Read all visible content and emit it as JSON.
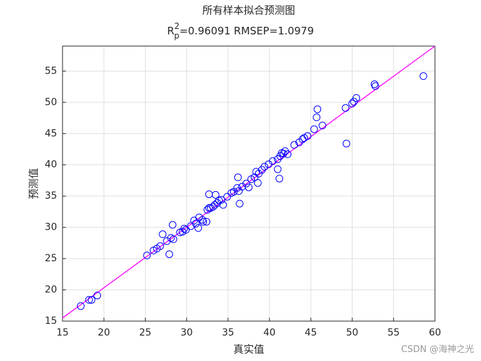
{
  "chart_data": {
    "type": "scatter",
    "title": "所有样本拟合预测图",
    "subtitle": {
      "base": "R",
      "sup": "2",
      "sub": "p",
      "rest": "=0.96091  RMSEP=1.0979"
    },
    "x_label": "真实值",
    "y_label": "预测值",
    "watermark": "CSDN @海神之光",
    "xlim": [
      15,
      60
    ],
    "ylim": [
      15,
      59
    ],
    "xticks": [
      15,
      20,
      25,
      30,
      35,
      40,
      45,
      50,
      55,
      60
    ],
    "yticks": [
      15,
      20,
      25,
      30,
      35,
      40,
      45,
      50,
      55
    ],
    "grid": true,
    "points": {
      "color": "#0000ff",
      "x": [
        17.2,
        18.2,
        18.5,
        19.2,
        25.2,
        26.0,
        26.4,
        26.8,
        27.1,
        27.6,
        27.9,
        28.1,
        28.3,
        28.4,
        29.2,
        29.5,
        29.7,
        29.9,
        30.5,
        30.9,
        31.1,
        31.4,
        31.5,
        31.9,
        32.0,
        32.4,
        32.5,
        32.7,
        32.7,
        32.9,
        33.2,
        33.4,
        33.5,
        33.7,
        33.9,
        34.2,
        34.4,
        34.9,
        35.4,
        35.7,
        36.1,
        36.2,
        36.4,
        36.3,
        36.7,
        37.2,
        37.5,
        37.8,
        38.2,
        38.4,
        38.6,
        38.7,
        39.1,
        39.4,
        39.9,
        40.4,
        41.0,
        41.0,
        41.2,
        41.3,
        41.5,
        41.7,
        41.9,
        42.2,
        43.0,
        43.6,
        44.0,
        44.2,
        44.6,
        45.4,
        45.7,
        45.8,
        46.4,
        49.3,
        49.2,
        50.0,
        50.2,
        50.5,
        52.7,
        52.8,
        58.6
      ],
      "values": [
        17.4,
        18.4,
        18.4,
        19.1,
        25.5,
        26.3,
        26.6,
        27.0,
        28.9,
        27.8,
        25.7,
        28.3,
        30.4,
        28.1,
        29.2,
        29.3,
        29.8,
        29.6,
        30.2,
        31.1,
        30.6,
        29.9,
        31.6,
        31.2,
        30.9,
        30.9,
        32.8,
        35.3,
        33.1,
        33.1,
        33.3,
        33.6,
        35.2,
        33.9,
        34.3,
        34.4,
        33.6,
        34.9,
        35.5,
        35.7,
        36.3,
        38.0,
        33.8,
        35.8,
        36.5,
        37.0,
        36.4,
        37.7,
        38.0,
        38.9,
        37.1,
        38.6,
        39.2,
        39.7,
        40.1,
        40.6,
        40.9,
        39.3,
        37.8,
        41.4,
        41.9,
        41.8,
        42.2,
        41.7,
        43.2,
        43.6,
        44.1,
        44.3,
        44.6,
        45.7,
        47.6,
        48.9,
        46.3,
        43.4,
        49.1,
        49.8,
        50.1,
        50.7,
        52.9,
        52.6,
        54.2
      ]
    },
    "fit_line": {
      "color": "#ff00ff",
      "x": [
        15,
        60
      ],
      "values": [
        15.5,
        59
      ]
    }
  }
}
